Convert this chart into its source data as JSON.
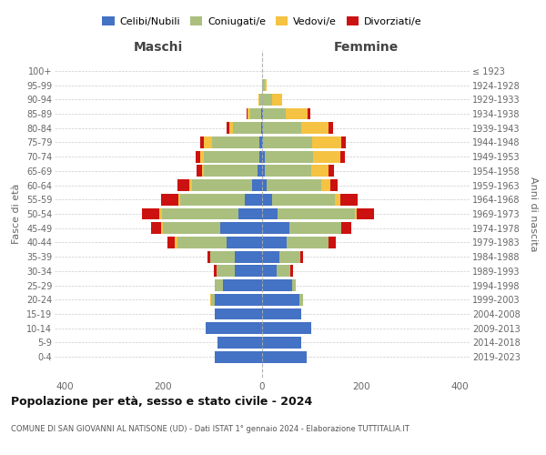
{
  "age_groups": [
    "100+",
    "95-99",
    "90-94",
    "85-89",
    "80-84",
    "75-79",
    "70-74",
    "65-69",
    "60-64",
    "55-59",
    "50-54",
    "45-49",
    "40-44",
    "35-39",
    "30-34",
    "25-29",
    "20-24",
    "15-19",
    "10-14",
    "5-9",
    "0-4"
  ],
  "birth_years": [
    "≤ 1923",
    "1924-1928",
    "1929-1933",
    "1934-1938",
    "1939-1943",
    "1944-1948",
    "1949-1953",
    "1954-1958",
    "1959-1963",
    "1964-1968",
    "1969-1973",
    "1974-1978",
    "1979-1983",
    "1984-1988",
    "1989-1993",
    "1994-1998",
    "1999-2003",
    "2004-2008",
    "2009-2013",
    "2014-2018",
    "2019-2023"
  ],
  "male": {
    "celibi": [
      0,
      0,
      0,
      2,
      2,
      5,
      5,
      10,
      20,
      35,
      48,
      85,
      72,
      55,
      55,
      80,
      95,
      95,
      115,
      90,
      95
    ],
    "coniugati": [
      0,
      0,
      5,
      22,
      57,
      97,
      112,
      107,
      122,
      130,
      155,
      115,
      100,
      50,
      38,
      15,
      8,
      0,
      0,
      0,
      0
    ],
    "vedovi": [
      0,
      0,
      2,
      5,
      8,
      15,
      8,
      5,
      5,
      5,
      5,
      5,
      5,
      0,
      0,
      0,
      2,
      0,
      0,
      0,
      0
    ],
    "divorziati": [
      0,
      0,
      0,
      2,
      5,
      8,
      10,
      10,
      25,
      35,
      35,
      20,
      15,
      5,
      5,
      0,
      0,
      0,
      0,
      0,
      0
    ]
  },
  "female": {
    "nubili": [
      0,
      0,
      0,
      2,
      2,
      2,
      5,
      5,
      10,
      20,
      32,
      55,
      50,
      35,
      30,
      60,
      75,
      80,
      100,
      80,
      90
    ],
    "coniugate": [
      0,
      5,
      20,
      45,
      78,
      100,
      98,
      95,
      110,
      128,
      155,
      105,
      85,
      42,
      28,
      8,
      8,
      0,
      0,
      0,
      0
    ],
    "vedove": [
      0,
      5,
      20,
      45,
      55,
      58,
      55,
      35,
      18,
      10,
      5,
      0,
      0,
      0,
      0,
      0,
      0,
      0,
      0,
      0,
      0
    ],
    "divorziate": [
      0,
      0,
      0,
      5,
      8,
      10,
      10,
      10,
      15,
      35,
      35,
      20,
      15,
      5,
      5,
      0,
      0,
      0,
      0,
      0,
      0
    ]
  },
  "colors": {
    "celibi": "#4472C4",
    "coniugati": "#AABF7E",
    "vedovi": "#F5C242",
    "divorziati": "#CC1111"
  },
  "title": "Popolazione per età, sesso e stato civile - 2024",
  "subtitle": "COMUNE DI SAN GIOVANNI AL NATISONE (UD) - Dati ISTAT 1° gennaio 2024 - Elaborazione TUTTITALIA.IT",
  "xlabel_left": "Maschi",
  "xlabel_right": "Femmine",
  "ylabel_left": "Fasce di età",
  "ylabel_right": "Anni di nascita",
  "xlim": 420,
  "legend_labels": [
    "Celibi/Nubili",
    "Coniugati/e",
    "Vedovi/e",
    "Divorziati/e"
  ]
}
